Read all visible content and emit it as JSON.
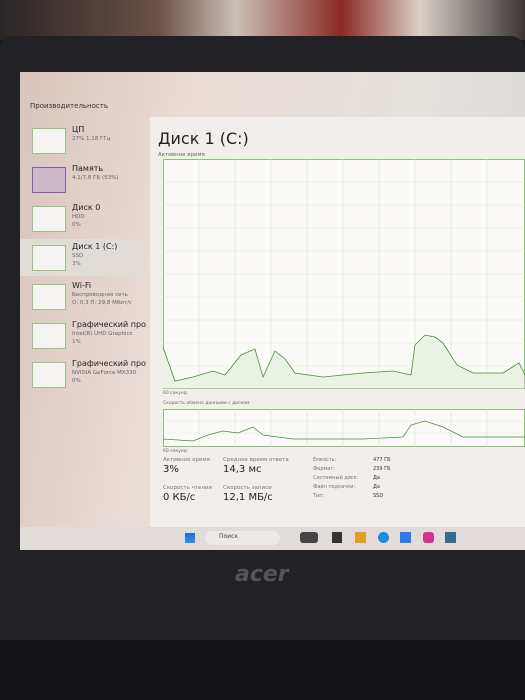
{
  "window": {
    "title": "Производительность"
  },
  "sidebar": [
    {
      "name": "ЦП",
      "lines": [
        "27% 1,18 ГГц"
      ]
    },
    {
      "name": "Память",
      "lines": [
        "4,1/7,8 ГБ (53%)"
      ]
    },
    {
      "name": "Диск 0",
      "lines": [
        "HDD",
        "0%"
      ]
    },
    {
      "name": "Диск 1 (C:)",
      "lines": [
        "SSD",
        "3%"
      ]
    },
    {
      "name": "Wi-Fi",
      "lines": [
        "Беспроводная сеть",
        "О: 0,3 П: 29,8 Мбит/с"
      ]
    },
    {
      "name": "Графический про",
      "lines": [
        "Intel(R) UHD Graphics",
        "1%"
      ]
    },
    {
      "name": "Графический про",
      "lines": [
        "NVIDIA GeForce MX330",
        "0%"
      ]
    }
  ],
  "main": {
    "title": "Диск 1 (C:)",
    "graph1_label": "Активное время",
    "graph1_time": "60 секунд",
    "graph2_label": "Скорость обмена данными с диском",
    "graph2_time": "60 секунд",
    "stats": [
      {
        "label": "Активное время",
        "value": "3%"
      },
      {
        "label": "Среднее время ответа",
        "value": "14,3 мс"
      },
      {
        "label": "Скорость чтения",
        "value": "0 КБ/с"
      },
      {
        "label": "Скорость записи",
        "value": "12,1 МБ/с"
      }
    ],
    "props": [
      {
        "label": "Емкость:",
        "value": "477 ГБ"
      },
      {
        "label": "Формат:",
        "value": "239 ГБ"
      },
      {
        "label": "Системный диск:",
        "value": "Да"
      },
      {
        "label": "Файл подкачки:",
        "value": "Да"
      },
      {
        "label": "Тип:",
        "value": "SSD"
      }
    ]
  },
  "taskbar": {
    "search": "Поиск"
  },
  "logo": "acer"
}
